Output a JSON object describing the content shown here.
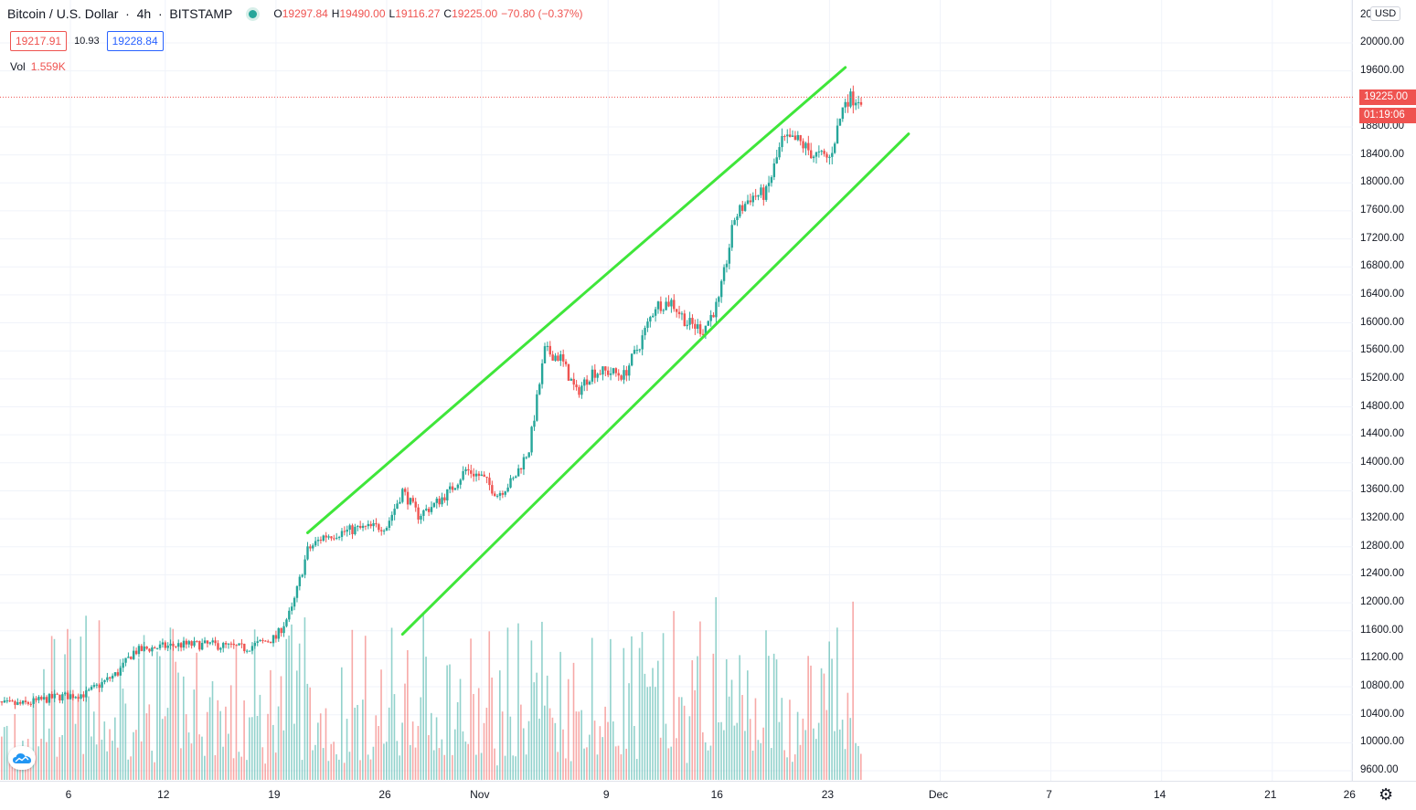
{
  "symbol": {
    "title": "Bitcoin / U.S. Dollar",
    "interval": "4h",
    "exchange": "BITSTAMP",
    "status_color": "#26a69a"
  },
  "ohlc": {
    "open_key": "O",
    "open": "19297.84",
    "high_key": "H",
    "high": "19490.00",
    "low_key": "L",
    "low": "19116.27",
    "close_key": "C",
    "close": "19225.00",
    "change": "−70.80 (−0.37%)"
  },
  "quote": {
    "bid": "19217.91",
    "spread": "10.93",
    "ask": "19228.84"
  },
  "volume": {
    "label": "Vol",
    "value": "1.559K"
  },
  "price_axis": {
    "currency": "USD",
    "top_partial_label": "20",
    "ticks": [
      "20000.00",
      "19600.00",
      "18800.00",
      "18400.00",
      "18000.00",
      "17600.00",
      "17200.00",
      "16800.00",
      "16400.00",
      "16000.00",
      "15600.00",
      "15200.00",
      "14800.00",
      "14400.00",
      "14000.00",
      "13600.00",
      "13200.00",
      "12800.00",
      "12400.00",
      "12000.00",
      "11600.00",
      "11200.00",
      "10800.00",
      "10400.00",
      "10000.00",
      "9600.00"
    ],
    "last_price": "19225.00",
    "countdown": "01:19:06"
  },
  "time_axis": {
    "ticks": [
      "6",
      "12",
      "19",
      "26",
      "Nov",
      "9",
      "16",
      "23",
      "Dec",
      "7",
      "14",
      "21",
      "26"
    ]
  },
  "colors": {
    "up": "#26a69a",
    "down": "#ef5350",
    "channel": "#3fe63a",
    "grid": "#f0f3fa"
  },
  "chart_data": {
    "type": "candlestick",
    "y_axis_range": [
      9400,
      20300
    ],
    "price_channel": {
      "upper_line": [
        [
          "Oct 21",
          13000
        ],
        [
          "Nov 24",
          19650
        ]
      ],
      "lower_line": [
        [
          "Oct 27",
          11550
        ],
        [
          "Nov 28",
          18700
        ]
      ]
    },
    "closes_approx": [
      [
        "Oct 1",
        10550
      ],
      [
        "Oct 3",
        10550
      ],
      [
        "Oct 5",
        10650
      ],
      [
        "Oct 7",
        10700
      ],
      [
        "Oct 9",
        11000
      ],
      [
        "Oct 10",
        11300
      ],
      [
        "Oct 11",
        11350
      ],
      [
        "Oct 13",
        11400
      ],
      [
        "Oct 15",
        11400
      ],
      [
        "Oct 17",
        11350
      ],
      [
        "Oct 19",
        11500
      ],
      [
        "Oct 20",
        11900
      ],
      [
        "Oct 21",
        12750
      ],
      [
        "Oct 22",
        12950
      ],
      [
        "Oct 24",
        13050
      ],
      [
        "Oct 26",
        13100
      ],
      [
        "Oct 27",
        13600
      ],
      [
        "Oct 28",
        13250
      ],
      [
        "Oct 29",
        13400
      ],
      [
        "Oct 30",
        13600
      ],
      [
        "Oct 31",
        13900
      ],
      [
        "Nov 1",
        13800
      ],
      [
        "Nov 2",
        13550
      ],
      [
        "Nov 3",
        13750
      ],
      [
        "Nov 4",
        14200
      ],
      [
        "Nov 5",
        15600
      ],
      [
        "Nov 6",
        15500
      ],
      [
        "Nov 7",
        15000
      ],
      [
        "Nov 8",
        15300
      ],
      [
        "Nov 9",
        15300
      ],
      [
        "Nov 10",
        15250
      ],
      [
        "Nov 11",
        15700
      ],
      [
        "Nov 12",
        16250
      ],
      [
        "Nov 13",
        16300
      ],
      [
        "Nov 14",
        16000
      ],
      [
        "Nov 15",
        15900
      ],
      [
        "Nov 16",
        16300
      ],
      [
        "Nov 17",
        17500
      ],
      [
        "Nov 18",
        17800
      ],
      [
        "Nov 19",
        17850
      ],
      [
        "Nov 20",
        18600
      ],
      [
        "Nov 21",
        18600
      ],
      [
        "Nov 22",
        18400
      ],
      [
        "Nov 23",
        18350
      ],
      [
        "Nov 24",
        19200
      ],
      [
        "Nov 25",
        19225
      ]
    ]
  }
}
